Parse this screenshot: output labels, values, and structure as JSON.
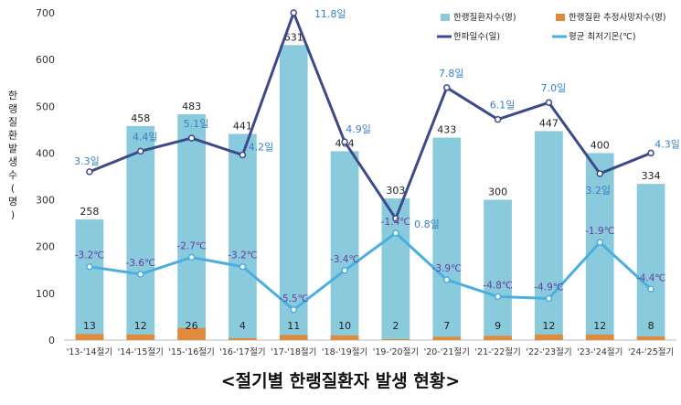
{
  "chart_data": {
    "type": "bar+line",
    "categories": [
      "'13-'14절기",
      "'14-'15절기",
      "'15-'16절기",
      "'16-'17절기",
      "'17-'18절기",
      "'18-'19절기",
      "'19-'20절기",
      "'20-'21절기",
      "'21-'22절기",
      "'22-'23절기",
      "'23-'24절기",
      "'24-'25절기"
    ],
    "ylabel": "한랭질환발생수(명)",
    "ylim": [
      0,
      700
    ],
    "yticks": [
      0,
      100,
      200,
      300,
      400,
      500,
      600,
      700
    ],
    "series": [
      {
        "name": "한랭질환자수(명)",
        "kind": "bar",
        "color": "#89cbdc",
        "values": [
          258,
          458,
          483,
          441,
          631,
          404,
          303,
          433,
          300,
          447,
          400,
          334
        ]
      },
      {
        "name": "한랭질환 추정사망자수(명)",
        "kind": "bar",
        "color": "#e08a3c",
        "values": [
          13,
          12,
          26,
          4,
          11,
          10,
          2,
          7,
          9,
          12,
          12,
          8
        ]
      },
      {
        "name": "한파일수(일)",
        "kind": "line",
        "color": "#3d4a8a",
        "values": [
          3.3,
          4.4,
          5.1,
          4.2,
          11.8,
          4.9,
          0.8,
          7.8,
          6.1,
          7.0,
          3.2,
          4.3
        ],
        "labels": [
          "3.3일",
          "4.4일",
          "5.1일",
          "4.2일",
          "11.8일",
          "4.9일",
          "0.8일",
          "7.8일",
          "6.1일",
          "7.0일",
          "3.2일",
          "4.3일"
        ]
      },
      {
        "name": "평균 최저기온(℃)",
        "kind": "line",
        "color": "#4aaee0",
        "values": [
          -3.2,
          -3.6,
          -2.7,
          -3.2,
          -5.5,
          -3.4,
          -1.4,
          -3.9,
          -4.8,
          -4.9,
          -1.9,
          -4.4
        ],
        "labels": [
          "-3.2℃",
          "-3.6℃",
          "-2.7℃",
          "-3.2℃",
          "-5.5℃",
          "-3.4℃",
          "-1.4℃",
          "-3.9℃",
          "-4.8℃",
          "-4.9℃",
          "-1.9℃",
          "-4.4℃"
        ]
      }
    ],
    "legend_position": "top-right",
    "grid": false
  },
  "caption": "<절기별 한랭질환자 발생 현황>"
}
